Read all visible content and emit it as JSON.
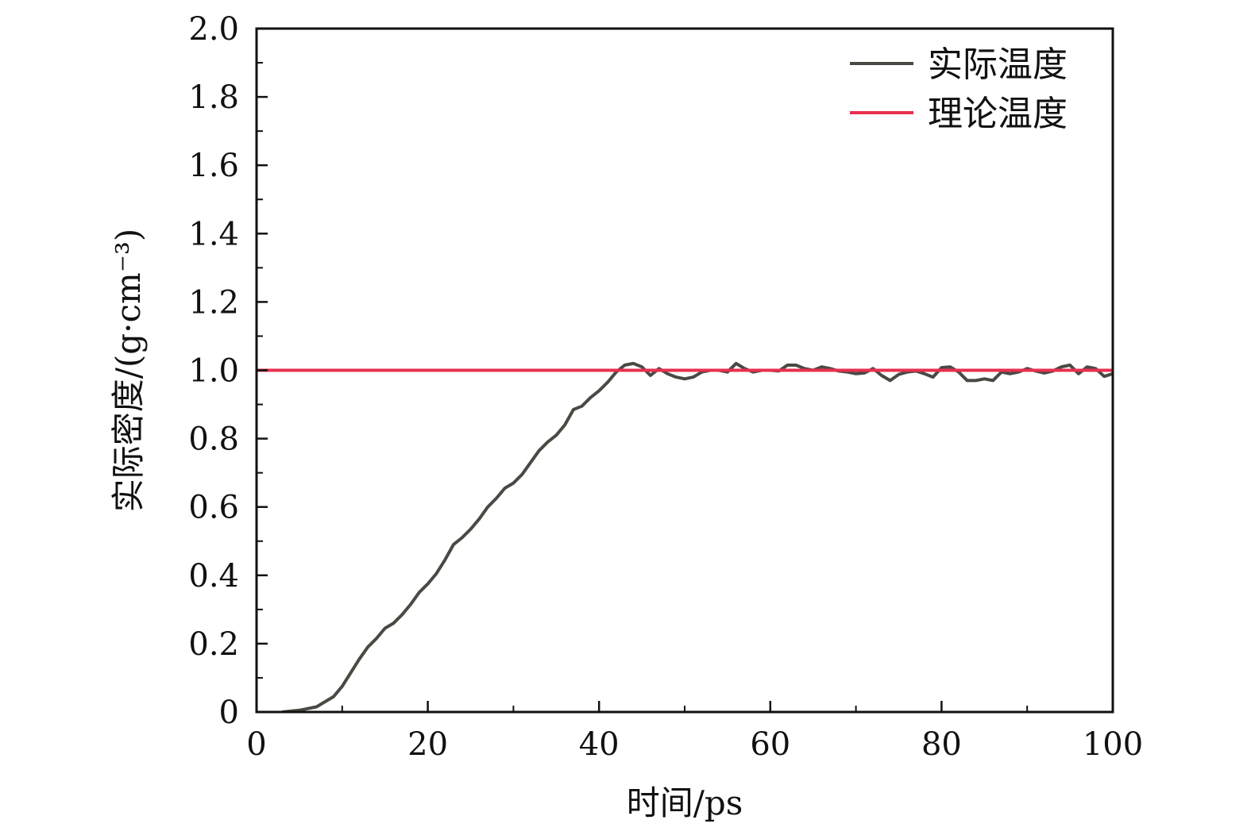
{
  "chart_data": {
    "type": "line",
    "title": "",
    "xlabel": "时间/ps",
    "ylabel": "实际密度/(g·cm⁻³)",
    "xlim": [
      0,
      100
    ],
    "ylim": [
      0,
      2.0
    ],
    "x_ticks": [
      0,
      20,
      40,
      60,
      80,
      100
    ],
    "x_tick_labels": [
      "0",
      "20",
      "40",
      "60",
      "80",
      "100"
    ],
    "y_ticks": [
      0,
      0.2,
      0.4,
      0.6,
      0.8,
      1.0,
      1.2,
      1.4,
      1.6,
      1.8,
      2.0
    ],
    "y_tick_labels": [
      "0",
      "0.2",
      "0.4",
      "0.6",
      "0.8",
      "1.0",
      "1.2",
      "1.4",
      "1.6",
      "1.8",
      "2.0"
    ],
    "grid": false,
    "legend_position": "top-right",
    "series": [
      {
        "name": "实际温度",
        "color": "#4a4a44",
        "x": [
          3,
          5,
          7,
          9,
          10,
          11,
          12,
          13,
          14,
          15,
          16,
          17,
          18,
          19,
          20,
          21,
          22,
          23,
          24,
          25,
          26,
          27,
          28,
          29,
          30,
          31,
          32,
          33,
          34,
          35,
          36,
          37,
          38,
          39,
          40,
          41,
          42,
          43,
          44,
          45,
          46,
          47,
          48,
          49,
          50,
          51,
          52,
          53,
          54,
          55,
          56,
          57,
          58,
          59,
          60,
          61,
          62,
          63,
          64,
          65,
          66,
          67,
          68,
          69,
          70,
          71,
          72,
          73,
          74,
          75,
          76,
          77,
          78,
          79,
          80,
          81,
          82,
          83,
          84,
          85,
          86,
          87,
          88,
          89,
          90,
          91,
          92,
          93,
          94,
          95,
          96,
          97,
          98,
          99,
          100
        ],
        "values": [
          0.0,
          0.005,
          0.015,
          0.045,
          0.075,
          0.115,
          0.155,
          0.19,
          0.215,
          0.245,
          0.26,
          0.285,
          0.315,
          0.35,
          0.375,
          0.405,
          0.445,
          0.49,
          0.51,
          0.535,
          0.565,
          0.6,
          0.625,
          0.655,
          0.67,
          0.695,
          0.73,
          0.765,
          0.79,
          0.81,
          0.84,
          0.885,
          0.895,
          0.92,
          0.94,
          0.965,
          0.995,
          1.015,
          1.02,
          1.01,
          0.985,
          1.005,
          0.99,
          0.98,
          0.975,
          0.98,
          0.995,
          1.0,
          1.0,
          0.995,
          1.02,
          1.005,
          0.995,
          1.0,
          1.0,
          0.998,
          1.015,
          1.015,
          1.005,
          1.0,
          1.01,
          1.005,
          0.998,
          0.995,
          0.99,
          0.992,
          1.005,
          0.985,
          0.97,
          0.988,
          0.995,
          0.998,
          0.99,
          0.98,
          1.008,
          1.01,
          0.995,
          0.97,
          0.97,
          0.975,
          0.97,
          0.995,
          0.99,
          0.995,
          1.005,
          0.998,
          0.992,
          0.998,
          1.01,
          1.015,
          0.99,
          1.01,
          1.005,
          0.982,
          0.99
        ]
      },
      {
        "name": "理论温度",
        "color": "#e8304f",
        "x": [
          0,
          100
        ],
        "values": [
          1.0,
          1.0
        ]
      }
    ]
  }
}
